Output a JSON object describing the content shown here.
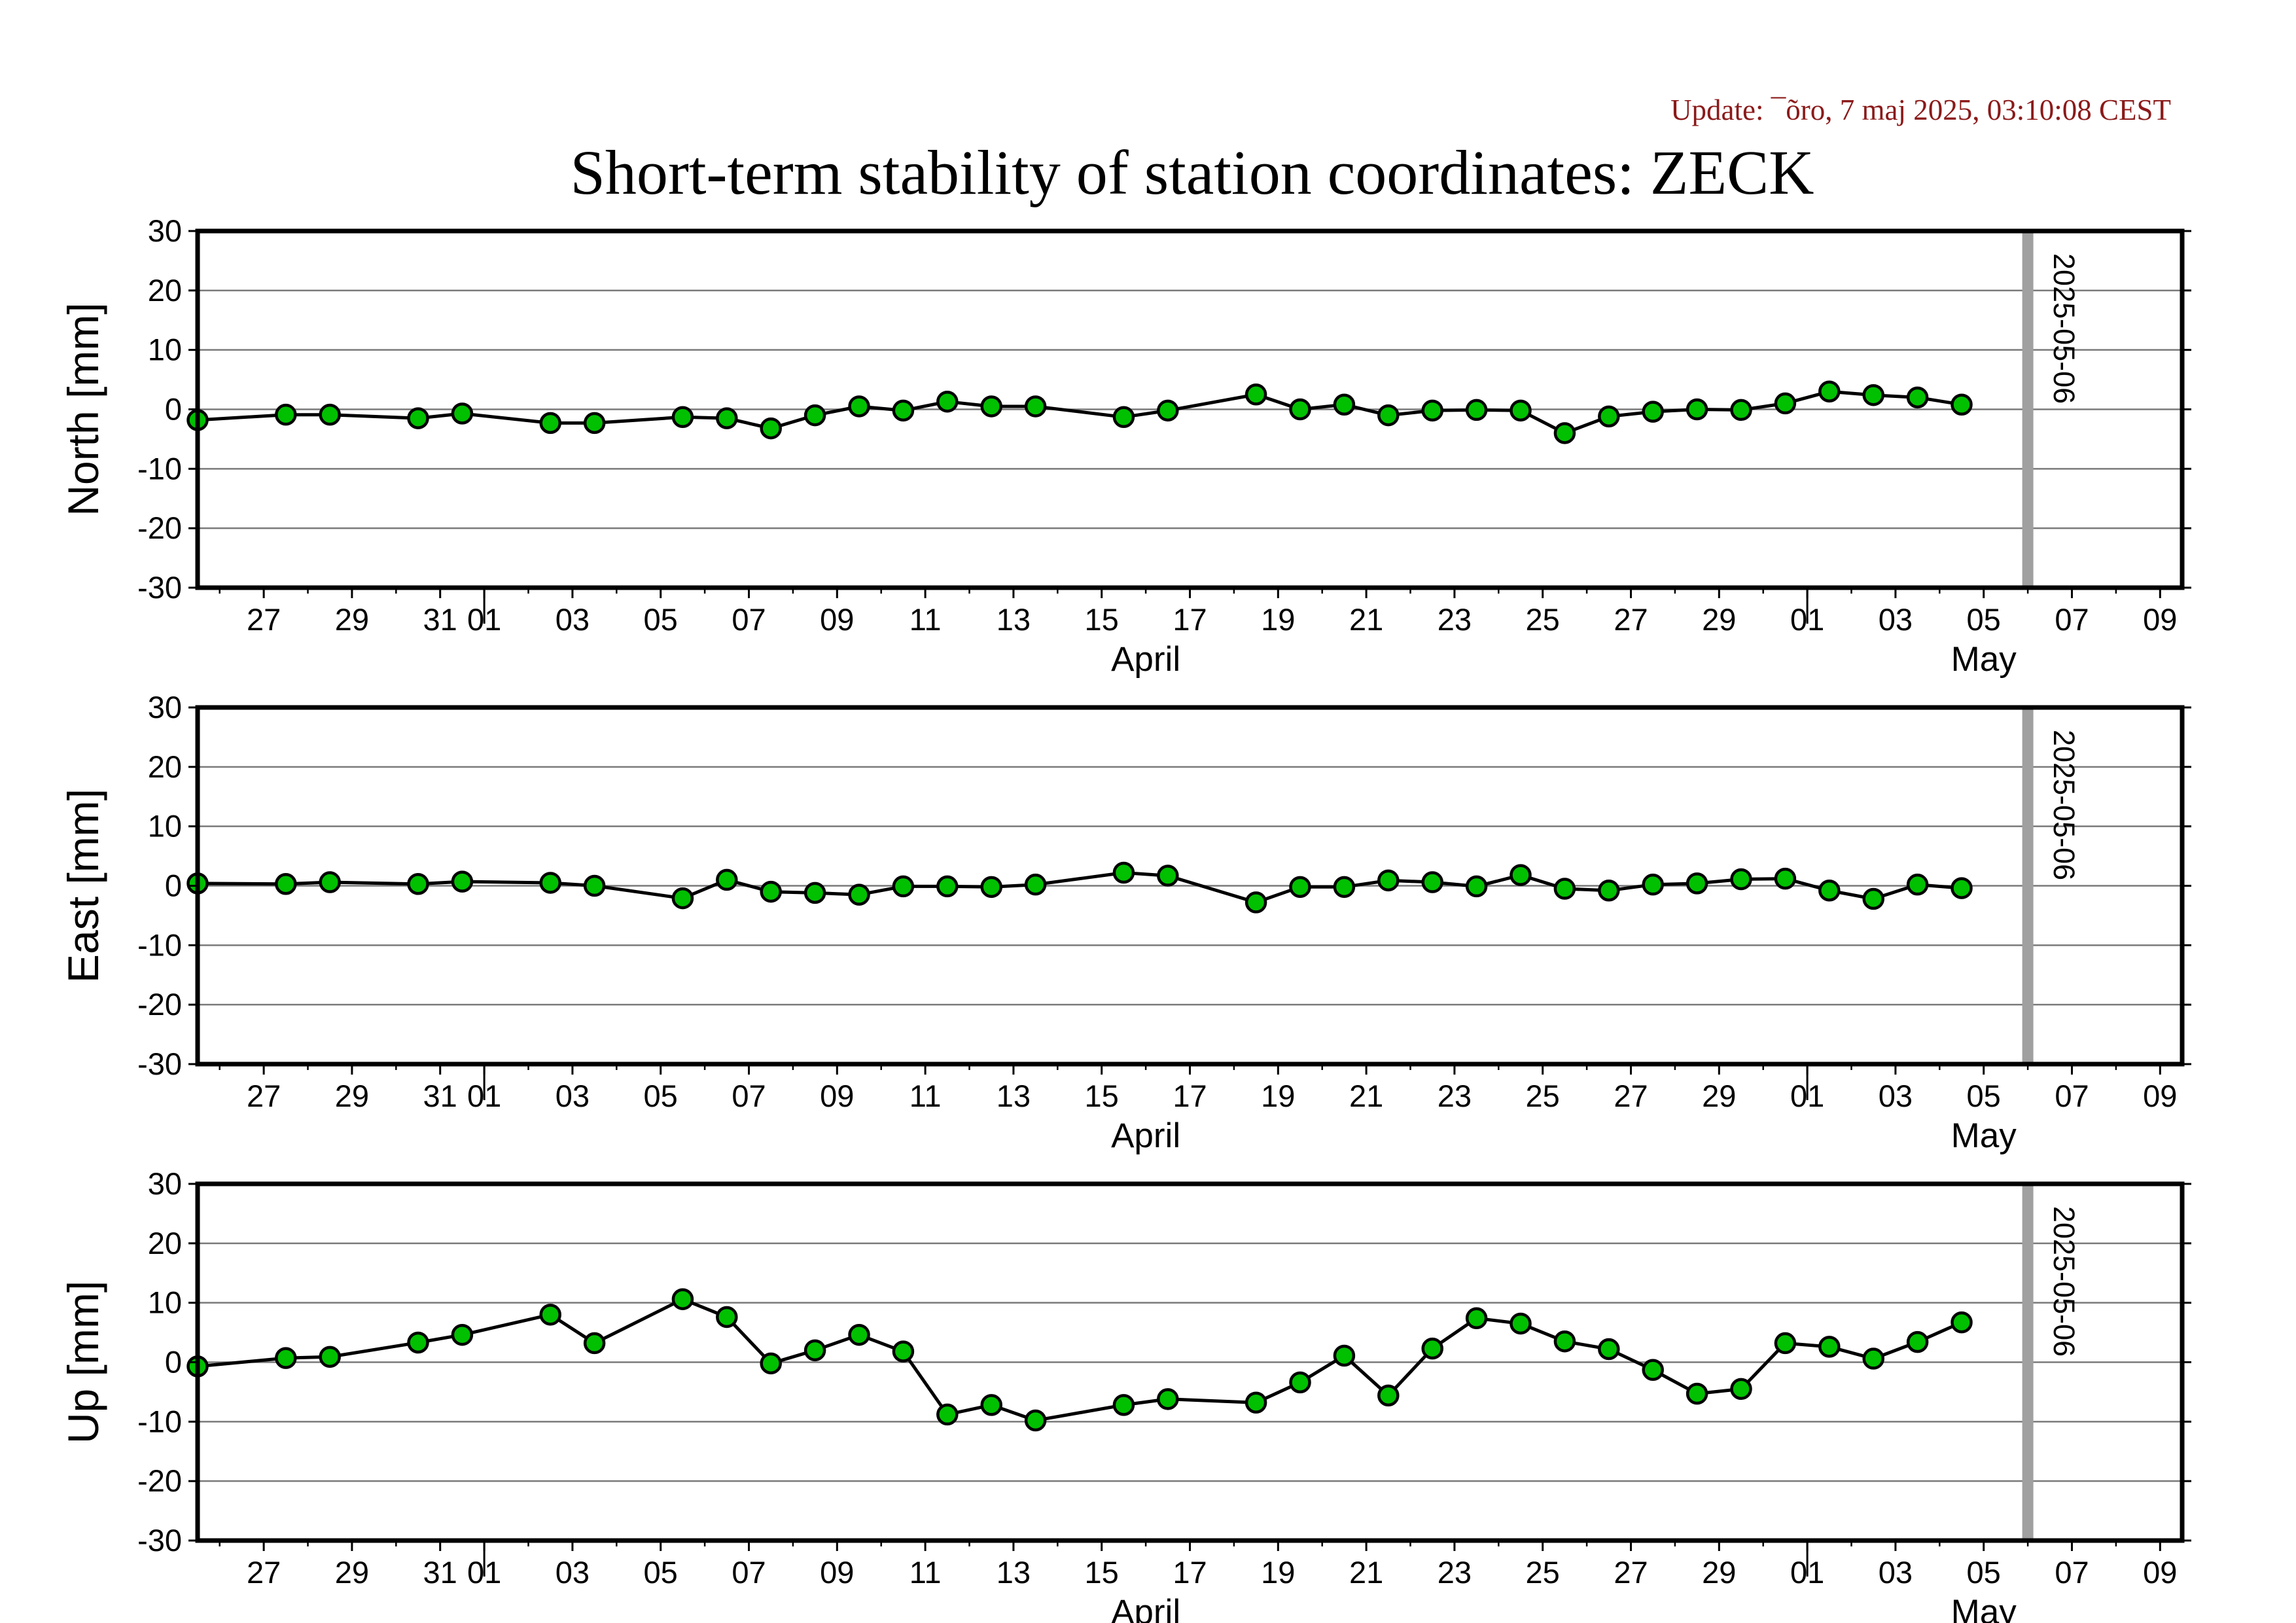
{
  "update_text": "Update: ¯õro, 7 maj 2025, 03:10:08 CEST",
  "chart_data": {
    "type": "line",
    "title": "Short-term stability of station coordinates: ZECK",
    "x_range": [
      "2025-03-25T12:00",
      "2025-05-09T12:00"
    ],
    "ylim": [
      -30,
      30
    ],
    "yticks": [
      30,
      20,
      10,
      0,
      -10,
      -20,
      -30
    ],
    "grid": true,
    "x_tick_labels": [
      "27",
      "29",
      "31",
      "01",
      "03",
      "05",
      "07",
      "09",
      "11",
      "13",
      "15",
      "17",
      "19",
      "21",
      "23",
      "25",
      "27",
      "29",
      "01",
      "03",
      "05",
      "07",
      "09"
    ],
    "x_tick_dates": [
      "2025-03-27",
      "2025-03-29",
      "2025-03-31",
      "2025-04-01",
      "2025-04-03",
      "2025-04-05",
      "2025-04-07",
      "2025-04-09",
      "2025-04-11",
      "2025-04-13",
      "2025-04-15",
      "2025-04-17",
      "2025-04-19",
      "2025-04-21",
      "2025-04-23",
      "2025-04-25",
      "2025-04-27",
      "2025-04-29",
      "2025-05-01",
      "2025-05-03",
      "2025-05-05",
      "2025-05-07",
      "2025-05-09"
    ],
    "month_labels": [
      {
        "text": "April",
        "date": "2025-04-16"
      },
      {
        "text": "May",
        "date": "2025-05-05"
      }
    ],
    "month_boundaries": [
      "2025-04-01",
      "2025-05-01"
    ],
    "marker": {
      "date": "2025-05-06",
      "label": "2025-05-06",
      "color": "#a0a0a0"
    },
    "point_color": "#00c000",
    "line_color": "#000000",
    "dates": [
      "2025-03-25T12:00",
      "2025-03-27T12:00",
      "2025-03-28T12:00",
      "2025-03-30T12:00",
      "2025-03-31T12:00",
      "2025-04-02T12:00",
      "2025-04-03T12:00",
      "2025-04-05T12:00",
      "2025-04-06T12:00",
      "2025-04-07T12:00",
      "2025-04-08T12:00",
      "2025-04-09T12:00",
      "2025-04-10T12:00",
      "2025-04-11T12:00",
      "2025-04-12T12:00",
      "2025-04-13T12:00",
      "2025-04-15T12:00",
      "2025-04-16T12:00",
      "2025-04-18T12:00",
      "2025-04-19T12:00",
      "2025-04-20T12:00",
      "2025-04-21T12:00",
      "2025-04-22T12:00",
      "2025-04-23T12:00",
      "2025-04-24T12:00",
      "2025-04-25T12:00",
      "2025-04-26T12:00",
      "2025-04-27T12:00",
      "2025-04-28T12:00",
      "2025-04-29T12:00",
      "2025-04-30T12:00",
      "2025-05-01T12:00",
      "2025-05-02T12:00",
      "2025-05-03T12:00",
      "2025-05-04T12:00"
    ],
    "panels": [
      {
        "ylabel": "North [mm]",
        "values": [
          -1.8,
          -0.9,
          -0.9,
          -1.5,
          -0.7,
          -2.3,
          -2.3,
          -1.3,
          -1.5,
          -3.2,
          -1.0,
          0.5,
          -0.2,
          1.3,
          0.5,
          0.5,
          -1.3,
          -0.2,
          2.5,
          0.0,
          0.8,
          -1.0,
          -0.2,
          -0.1,
          -0.2,
          -4.0,
          -1.2,
          -0.4,
          0.0,
          -0.1,
          1.0,
          3.0,
          2.4,
          2.0,
          0.8
        ]
      },
      {
        "ylabel": "East [mm]",
        "values": [
          0.4,
          0.3,
          0.6,
          0.3,
          0.7,
          0.5,
          0.0,
          -2.1,
          1.0,
          -1.0,
          -1.2,
          -1.5,
          -0.1,
          -0.1,
          -0.2,
          0.2,
          2.2,
          1.7,
          -2.8,
          -0.2,
          -0.2,
          0.9,
          0.6,
          -0.1,
          1.8,
          -0.5,
          -0.8,
          0.2,
          0.4,
          1.1,
          1.2,
          -0.8,
          -2.2,
          0.2,
          -0.4
        ]
      },
      {
        "ylabel": "Up [mm]",
        "values": [
          -0.7,
          0.7,
          0.9,
          3.3,
          4.6,
          8.0,
          3.2,
          10.6,
          7.6,
          -0.2,
          2.0,
          4.6,
          1.8,
          -8.8,
          -7.2,
          -9.8,
          -7.2,
          -6.2,
          -6.8,
          -3.4,
          1.1,
          -5.6,
          2.3,
          7.4,
          6.5,
          3.5,
          2.2,
          -1.3,
          -5.3,
          -4.5,
          3.2,
          2.6,
          0.6,
          3.4,
          6.7
        ]
      }
    ]
  }
}
